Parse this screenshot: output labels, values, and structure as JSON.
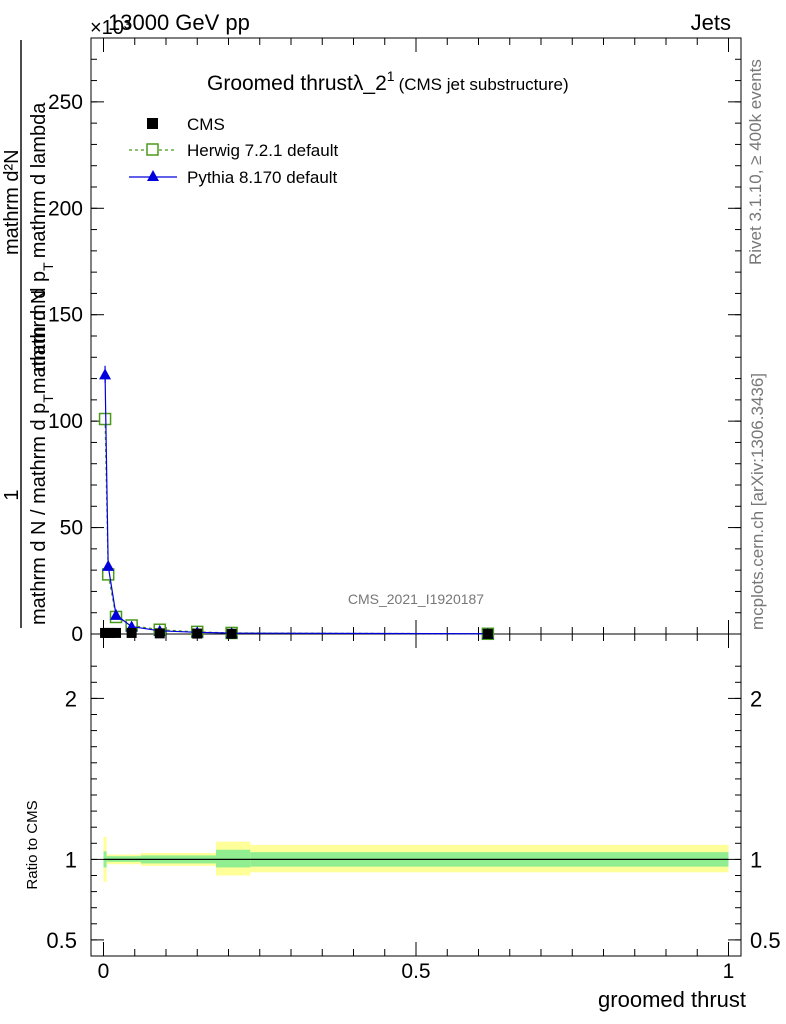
{
  "header": {
    "energy_label": "13000 GeV pp",
    "process_label": "Jets",
    "exponent_label": "×10³",
    "side_rivet": "Rivet 3.1.10, ≥ 400k events",
    "side_mcplots": "mcplots.cern.ch [arXiv:1306.3436]",
    "watermark": "CMS_2021_I1920187"
  },
  "chart_data": {
    "type": "line",
    "title_main": "Groomed thrustλ_2",
    "title_sup": "1",
    "title_sub": "(CMS jet substructure)",
    "ylabel_top": "1",
    "ylabel_bottom": "mathrm d N / mathrm d p",
    "ylabel_sub": "T",
    "ylabel_rest": "mathrm d N",
    "ylabel_frac_num": "mathrm d²N",
    "ylabel_frac_den": "mathrm d p",
    "ylabel_frac_den_sub": "T",
    "ylabel_frac_den_rest": "mathrm d lambda",
    "xlabel": "groomed thrust",
    "ratio_ylabel": "Ratio to CMS",
    "xlim": [
      -0.02,
      1.02
    ],
    "ylim": [
      0,
      280
    ],
    "ratio_ylim": [
      0.4,
      2.4
    ],
    "main_yticks": [
      0,
      50,
      100,
      150,
      200,
      250
    ],
    "ratio_yticks": [
      0.5,
      1,
      2
    ],
    "ratio_ytick_labels": [
      "0.5",
      "1",
      "2"
    ],
    "xticks": [
      0,
      0.5,
      1
    ],
    "xtick_labels": [
      "0",
      "0.5",
      "1"
    ],
    "legend": [
      "CMS",
      "Herwig 7.2.1 default",
      "Pythia 8.170 default"
    ],
    "series": [
      {
        "name": "CMS",
        "color": "#000000",
        "x": [
          0.0025,
          0.01,
          0.02,
          0.045,
          0.09,
          0.15,
          0.205,
          0.615
        ],
        "values": [
          0.5,
          0.5,
          0.5,
          0.5,
          0.3,
          0.2,
          0.1,
          0.05
        ]
      },
      {
        "name": "Herwig 7.2.1 default",
        "color": "#4a9a1a",
        "x": [
          0.0025,
          0.0075,
          0.02,
          0.045,
          0.09,
          0.15,
          0.205,
          0.615
        ],
        "values": [
          101,
          28,
          8,
          4,
          2,
          1,
          0.5,
          0.1
        ]
      },
      {
        "name": "Pythia 8.170 default",
        "color": "#0000dd",
        "x": [
          0.0025,
          0.0075,
          0.02,
          0.045,
          0.09,
          0.15,
          0.205,
          0.615
        ],
        "values": [
          122,
          32,
          9,
          3.5,
          1.5,
          0.8,
          0.4,
          0.1
        ]
      }
    ],
    "ratio_bands": [
      {
        "x0": 0.0,
        "x1": 0.005,
        "inner": [
          0.95,
          1.05
        ],
        "outer": [
          0.86,
          1.14
        ]
      },
      {
        "x0": 0.005,
        "x1": 0.06,
        "inner": [
          0.985,
          1.02
        ],
        "outer": [
          0.97,
          1.03
        ]
      },
      {
        "x0": 0.06,
        "x1": 0.18,
        "inner": [
          0.975,
          1.025
        ],
        "outer": [
          0.96,
          1.04
        ]
      },
      {
        "x0": 0.18,
        "x1": 0.235,
        "inner": [
          0.95,
          1.06
        ],
        "outer": [
          0.9,
          1.11
        ]
      },
      {
        "x0": 0.235,
        "x1": 1.0,
        "inner": [
          0.955,
          1.045
        ],
        "outer": [
          0.92,
          1.09
        ]
      }
    ],
    "colors": {
      "band_inner": "#90ee90",
      "band_outer": "#ffff99",
      "ratio_line": "#000000"
    }
  }
}
